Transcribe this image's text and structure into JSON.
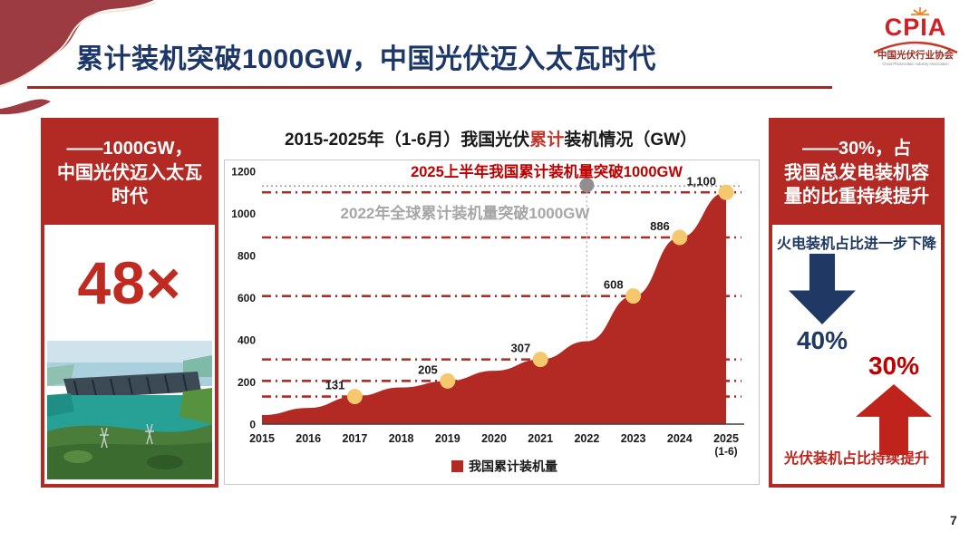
{
  "slide": {
    "title": "累计装机突破1000GW，中国光伏迈入太瓦时代",
    "page_number": "7"
  },
  "logo": {
    "acronym": "CPIA",
    "org_cn": "中国光伏行业协会",
    "org_en": "China Photovoltaic Industry Association"
  },
  "left_panel": {
    "heading_line1": "——1000GW，",
    "heading_line2": "中国光伏迈入太瓦",
    "heading_line3": "时代",
    "multiplier": "48×"
  },
  "right_panel": {
    "heading_line1": "——30%，占",
    "heading_line2": "我国总发电装机容",
    "heading_line3": "量的比重持续提升",
    "thermal_text": "火电装机占比进一步下降",
    "thermal_pct": "40%",
    "pv_pct": "30%",
    "pv_text": "光伏装机占比持续提升"
  },
  "chart_data": {
    "type": "area",
    "title_pre": "2015-2025年（1-6月）我国光伏",
    "title_highlight": "累计",
    "title_post": "装机情况（GW）",
    "categories": [
      "2015",
      "2016",
      "2017",
      "2018",
      "2019",
      "2020",
      "2021",
      "2022",
      "2023",
      "2024",
      "2025"
    ],
    "last_category_note": "(1-6)",
    "series": [
      {
        "name": "我国累计装机量",
        "values": [
          43,
          77,
          131,
          174,
          205,
          253,
          307,
          393,
          608,
          886,
          1100
        ]
      }
    ],
    "labeled_points": [
      {
        "category": "2017",
        "value": 131,
        "label": "131"
      },
      {
        "category": "2019",
        "value": 205,
        "label": "205"
      },
      {
        "category": "2021",
        "value": 307,
        "label": "307"
      },
      {
        "category": "2023",
        "value": 608,
        "label": "608"
      },
      {
        "category": "2024",
        "value": 886,
        "label": "886"
      },
      {
        "category": "2025",
        "value": 1100,
        "label": "1,100"
      }
    ],
    "reference_levels": [
      131,
      205,
      307,
      608,
      886,
      1100
    ],
    "annotation_red": "2025上半年我国累计装机量突破1000GW",
    "global_reference": {
      "category": "2022",
      "level": 1130,
      "label": "2022年全球累计装机量突破1000GW"
    },
    "y_ticks": [
      "0",
      "200",
      "400",
      "600",
      "800",
      "1000",
      "1200"
    ],
    "ylim": [
      0,
      1200
    ],
    "legend": "我国累计装机量",
    "legend_position": "bottom-center",
    "grid": "dash-dot reference lines at labeled values"
  },
  "colors": {
    "brand_red": "#b22a23",
    "accent_red": "#c00000",
    "navy": "#1f3864",
    "annotation_gray": "#a6a6a6",
    "marker_gold": "#f5c86e",
    "global_gray": "#8f8f8f"
  }
}
